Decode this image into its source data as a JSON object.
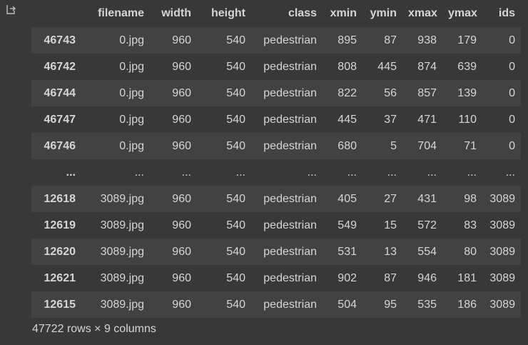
{
  "output": {
    "icon": "output-redirect-icon"
  },
  "table": {
    "columns": [
      "",
      "filename",
      "width",
      "height",
      "class",
      "xmin",
      "ymin",
      "xmax",
      "ymax",
      "ids"
    ],
    "rows": [
      [
        "46743",
        "0.jpg",
        "960",
        "540",
        "pedestrian",
        "895",
        "87",
        "938",
        "179",
        "0"
      ],
      [
        "46742",
        "0.jpg",
        "960",
        "540",
        "pedestrian",
        "808",
        "445",
        "874",
        "639",
        "0"
      ],
      [
        "46744",
        "0.jpg",
        "960",
        "540",
        "pedestrian",
        "822",
        "56",
        "857",
        "139",
        "0"
      ],
      [
        "46747",
        "0.jpg",
        "960",
        "540",
        "pedestrian",
        "445",
        "37",
        "471",
        "110",
        "0"
      ],
      [
        "46746",
        "0.jpg",
        "960",
        "540",
        "pedestrian",
        "680",
        "5",
        "704",
        "71",
        "0"
      ],
      [
        "...",
        "...",
        "...",
        "...",
        "...",
        "...",
        "...",
        "...",
        "...",
        "..."
      ],
      [
        "12618",
        "3089.jpg",
        "960",
        "540",
        "pedestrian",
        "405",
        "27",
        "431",
        "98",
        "3089"
      ],
      [
        "12619",
        "3089.jpg",
        "960",
        "540",
        "pedestrian",
        "549",
        "15",
        "572",
        "83",
        "3089"
      ],
      [
        "12620",
        "3089.jpg",
        "960",
        "540",
        "pedestrian",
        "531",
        "13",
        "554",
        "80",
        "3089"
      ],
      [
        "12621",
        "3089.jpg",
        "960",
        "540",
        "pedestrian",
        "902",
        "87",
        "946",
        "181",
        "3089"
      ],
      [
        "12615",
        "3089.jpg",
        "960",
        "540",
        "pedestrian",
        "504",
        "95",
        "535",
        "186",
        "3089"
      ]
    ]
  },
  "footer": {
    "summary": "47722 rows × 9 columns"
  }
}
